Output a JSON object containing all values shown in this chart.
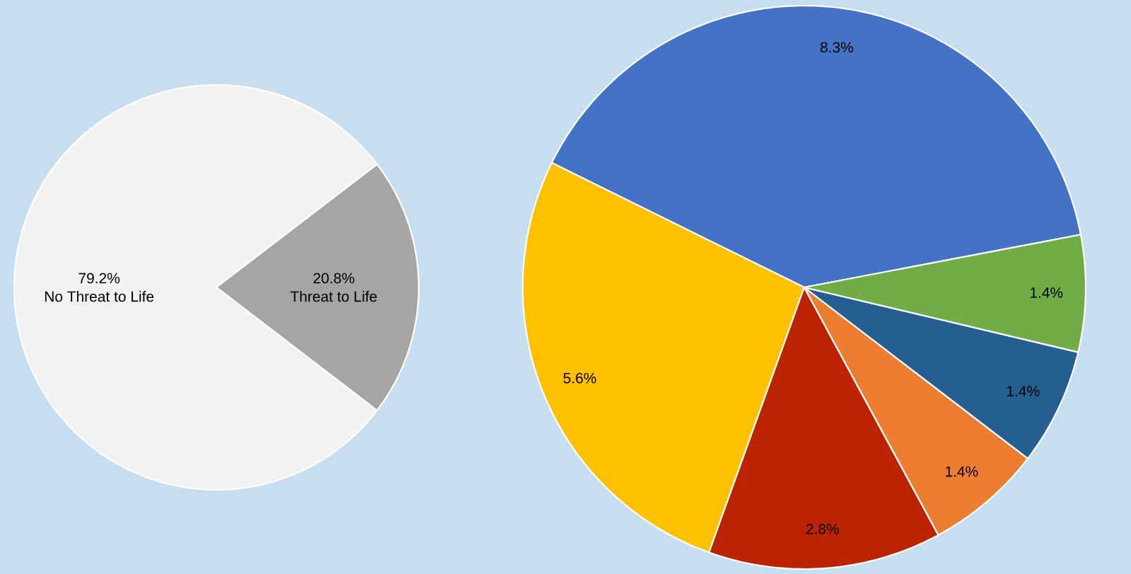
{
  "chart_data": [
    {
      "type": "pie",
      "categories": [
        "No Threat to Life",
        "Threat to Life"
      ],
      "values": [
        79.2,
        20.8
      ],
      "colors": [
        "#f2f2f2",
        "#a5a5a5"
      ],
      "value_labels": [
        "79.2%",
        "20.8%"
      ]
    },
    {
      "type": "pie",
      "categories": [
        null,
        null,
        null,
        null,
        null,
        null
      ],
      "values": [
        8.3,
        5.6,
        2.8,
        1.4,
        1.4,
        1.4
      ],
      "colors": [
        "#4472c4",
        "#ffc000",
        "#bc2300",
        "#ed7d31",
        "#255e91",
        "#70ad47"
      ],
      "value_labels": [
        "8.3%",
        "5.6%",
        "2.8%",
        "1.4%",
        "1.4%",
        "1.4%"
      ]
    }
  ]
}
